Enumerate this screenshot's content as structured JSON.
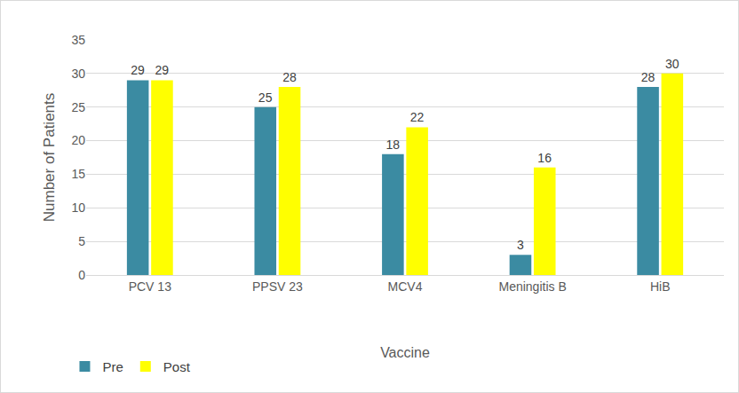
{
  "chart_data": {
    "type": "bar",
    "x_label": "Vaccine",
    "y_label": "Number of Patients",
    "categories": [
      "PCV 13",
      "PPSV 23",
      "MCV4",
      "Meningitis B",
      "HiB"
    ],
    "series": [
      {
        "name": "Pre",
        "color": "#3b8ba2",
        "values": [
          29,
          25,
          18,
          3,
          28
        ]
      },
      {
        "name": "Post",
        "color": "#ffff00",
        "values": [
          29,
          28,
          22,
          16,
          30
        ]
      }
    ],
    "ylim": [
      0,
      35
    ],
    "yticks": [
      0,
      5,
      10,
      15,
      20,
      25,
      30,
      35
    ],
    "grid": true,
    "data_labels": true,
    "legend": "lower left"
  }
}
